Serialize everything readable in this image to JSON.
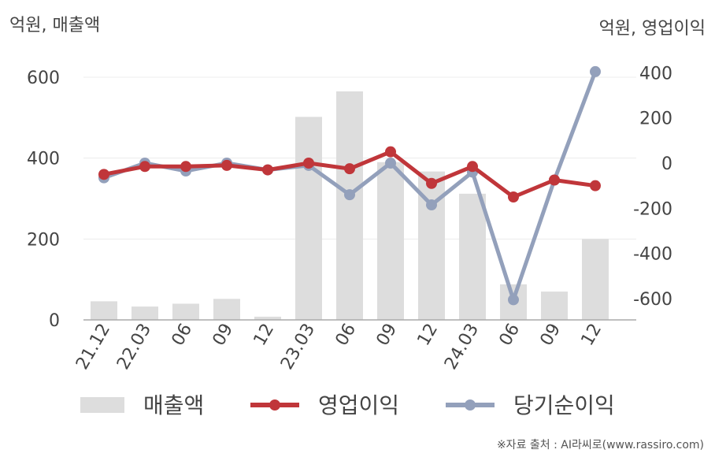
{
  "units": {
    "left": "억원, 매출액",
    "right": "억원, 영업이익"
  },
  "source": "※자료 출처 : AI라씨로(www.rassiro.com)",
  "chart_data": {
    "type": "bar+line",
    "categories": [
      "21.12",
      "22.03",
      "06",
      "09",
      "12",
      "23.03",
      "06",
      "09",
      "12",
      "24.03",
      "06",
      "09",
      "12"
    ],
    "y_left": {
      "ticks": [
        0,
        200,
        400,
        600
      ],
      "range": [
        0,
        600
      ],
      "labels": [
        "0",
        "200",
        "400",
        "600"
      ]
    },
    "y_right": {
      "ticks": [
        -600,
        -400,
        -200,
        0,
        200,
        400
      ],
      "range": [
        -700,
        400
      ],
      "labels": [
        "-600",
        "-400",
        "-200",
        "0",
        "200",
        "400"
      ]
    },
    "series": [
      {
        "name": "매출액",
        "type": "bar",
        "axis": "left",
        "color": "#dddddd",
        "values": [
          46,
          33,
          40,
          52,
          8,
          502,
          565,
          390,
          367,
          312,
          88,
          70,
          200
        ]
      },
      {
        "name": "영업이익",
        "type": "line",
        "axis": "right",
        "color": "#c0363a",
        "values": [
          -50,
          -15,
          -15,
          -10,
          -30,
          0,
          -25,
          50,
          -90,
          -15,
          -150,
          -75,
          -100
        ]
      },
      {
        "name": "당기순이익",
        "type": "line",
        "axis": "right",
        "color": "#93a0bb",
        "values": [
          -65,
          0,
          -35,
          0,
          -30,
          -10,
          -140,
          0,
          -185,
          -40,
          -605,
          -75,
          405
        ]
      }
    ],
    "grid": true,
    "legend": "bottom"
  }
}
